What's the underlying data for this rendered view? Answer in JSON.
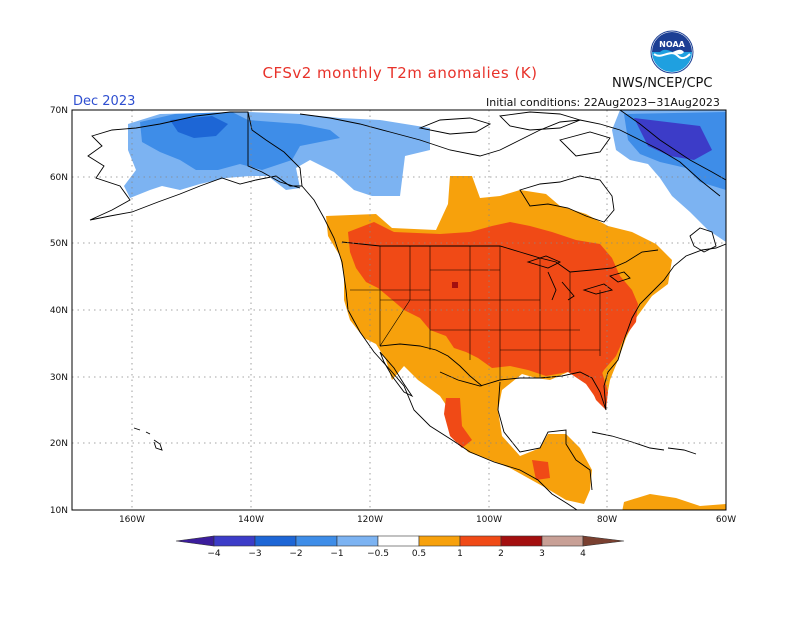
{
  "header": {
    "title": "CFSv2 monthly T2m anomalies (K)",
    "agency": "NWS/NCEP/CPC",
    "logo_text": "NOAA",
    "valid_month": "Dec 2023",
    "initial_conditions": "Initial conditions: 22Aug2023−31Aug2023"
  },
  "map": {
    "lat_labels": [
      "70N",
      "60N",
      "50N",
      "40N",
      "30N",
      "20N",
      "10N"
    ],
    "lon_labels": [
      "160W",
      "140W",
      "120W",
      "100W",
      "80W",
      "60W"
    ]
  },
  "colorbar": {
    "tick_labels": [
      "−4",
      "−3",
      "−2",
      "−1",
      "−0.5",
      "0.5",
      "1",
      "2",
      "3",
      "4"
    ],
    "colors": {
      "lt_-4": "#3b1d9c",
      "-4_-3": "#3c3cc8",
      "-3_-2": "#1d66d6",
      "-2_-1": "#3e8de8",
      "-1_-0.5": "#7cb3f2",
      "-0.5_0.5": "#ffffff",
      "0.5_1": "#f7a10c",
      "1_2": "#f04a16",
      "2_3": "#a30f0f",
      "3_4": "#c8a096",
      "gt_4": "#7a4030"
    }
  }
}
